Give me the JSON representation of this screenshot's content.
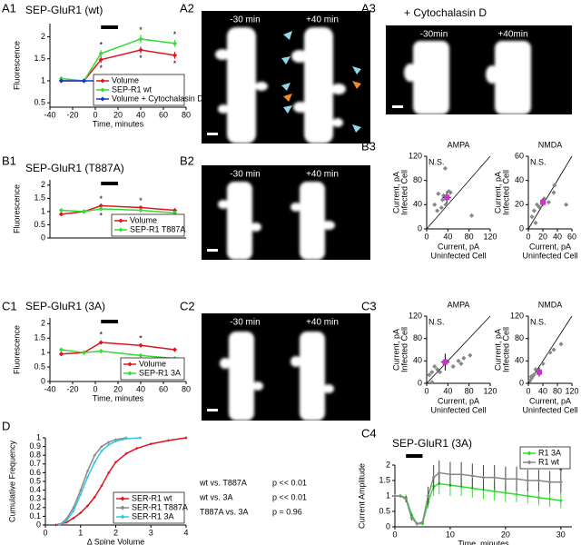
{
  "panels": {
    "labels": [
      "A1",
      "A2",
      "A3",
      "B1",
      "B2",
      "B3",
      "C1",
      "C2",
      "C3",
      "D",
      "C4"
    ],
    "A2": {
      "left": "-30 min",
      "right": "+40 min"
    },
    "A3": {
      "title": "+ Cytochalasin D",
      "left": "-30min",
      "right": "+40min"
    },
    "B2": {
      "left": "-30 min",
      "right": "+40 min"
    },
    "C2": {
      "left": "-30 min",
      "right": "+40 min"
    }
  },
  "chart_data": [
    {
      "type": "line",
      "title": "SEP-GluR1 (wt)",
      "xlabel": "Time, minutes",
      "ylabel": "Fluorescence",
      "x": [
        -30,
        -10,
        5,
        40,
        70
      ],
      "xlim": [
        -40,
        80
      ],
      "xticks": [
        -40,
        -20,
        0,
        20,
        40,
        60,
        80
      ],
      "ylim": [
        0.4,
        2.3
      ],
      "yticks": [
        0.5,
        1,
        1.5,
        2
      ],
      "drug_bar": [
        5,
        20
      ],
      "legend": "lower-right",
      "series": [
        {
          "name": "Volume",
          "color": "#e0141e",
          "values": [
            1.0,
            1.0,
            1.48,
            1.7,
            1.58
          ],
          "errors": [
            0.02,
            0.02,
            0.08,
            0.08,
            0.08
          ]
        },
        {
          "name": "SEP-R1 wt",
          "color": "#33dd33",
          "values": [
            1.05,
            1.0,
            1.62,
            1.95,
            1.85
          ],
          "errors": [
            0.03,
            0.02,
            0.08,
            0.1,
            0.08
          ]
        },
        {
          "name": "Volume + Cytochalasin D",
          "color": "#1530d6",
          "values": [
            1.0,
            1.0,
            1.0,
            1.0,
            1.02
          ],
          "errors": [
            0.02,
            0.02,
            0.02,
            0.02,
            0.02
          ]
        }
      ],
      "annotations": [
        {
          "text": "*",
          "x": 5,
          "y": 1.8,
          "color": "#33dd33"
        },
        {
          "text": "*",
          "x": 5,
          "y": 1.28,
          "color": "#e0141e"
        },
        {
          "text": "*",
          "x": 40,
          "y": 2.14,
          "color": "#33dd33"
        },
        {
          "text": "*",
          "x": 40,
          "y": 1.5,
          "color": "#e0141e"
        },
        {
          "text": "*",
          "x": 70,
          "y": 2.04,
          "color": "#33dd33"
        },
        {
          "text": "*",
          "x": 70,
          "y": 1.38,
          "color": "#e0141e"
        }
      ]
    },
    {
      "type": "line",
      "title": "SEP-GluR1 (T887A)",
      "ylabel": "Fluorescence",
      "x": [
        -30,
        -10,
        5,
        40,
        70
      ],
      "xlim": [
        -40,
        80
      ],
      "ylim": [
        0,
        2.2
      ],
      "yticks": [
        0,
        0.5,
        1,
        1.5,
        2
      ],
      "drug_bar": [
        5,
        20
      ],
      "legend": "lower-right",
      "series": [
        {
          "name": "Volume",
          "color": "#e0141e",
          "values": [
            0.9,
            1.0,
            1.22,
            1.15,
            1.05
          ]
        },
        {
          "name": "SEP-R1 T887A",
          "color": "#33dd33",
          "values": [
            1.05,
            1.0,
            1.1,
            1.05,
            0.95
          ]
        }
      ],
      "annotations": [
        {
          "text": "*",
          "x": 5,
          "y": 1.45,
          "color": "#e0141e"
        },
        {
          "text": "*",
          "x": 5,
          "y": 0.82,
          "color": "#33dd33"
        },
        {
          "text": "*",
          "x": 40,
          "y": 1.38,
          "color": "#e0141e"
        }
      ]
    },
    {
      "type": "line",
      "title": "SEP-GluR1 (3A)",
      "xlabel": "Time, minutes",
      "ylabel": "Fluorescence",
      "x": [
        -30,
        -10,
        5,
        40,
        70
      ],
      "xlim": [
        -40,
        80
      ],
      "xticks": [
        -40,
        -20,
        0,
        20,
        40,
        60,
        80
      ],
      "ylim": [
        0,
        2.2
      ],
      "yticks": [
        0,
        0.5,
        1,
        1.5,
        2
      ],
      "drug_bar": [
        5,
        20
      ],
      "legend": "lower-right",
      "series": [
        {
          "name": "Volume",
          "color": "#e0141e",
          "values": [
            0.95,
            1.0,
            1.35,
            1.25,
            1.1
          ]
        },
        {
          "name": "SEP-R1 3A",
          "color": "#33dd33",
          "values": [
            1.1,
            1.0,
            1.05,
            0.9,
            0.8
          ]
        }
      ],
      "annotations": [
        {
          "text": "*",
          "x": 5,
          "y": 1.6,
          "color": "#e0141e"
        },
        {
          "text": "*",
          "x": 40,
          "y": 1.48,
          "color": "#e0141e"
        }
      ]
    },
    {
      "type": "scatter",
      "title": "AMPA",
      "note": "N.S.",
      "xlabel": [
        "Current, pA",
        "Uninfected Cell"
      ],
      "ylabel": [
        "Current, pA",
        "Infected Cell"
      ],
      "xlim": [
        0,
        120
      ],
      "xticks": [
        0,
        40,
        80,
        120
      ],
      "ylim": [
        0,
        120
      ],
      "yticks": [
        0,
        40,
        80,
        120
      ],
      "color": "#888888",
      "x": [
        15,
        22,
        28,
        32,
        36,
        42,
        45,
        20,
        30,
        85,
        35
      ],
      "values": [
        40,
        58,
        35,
        55,
        40,
        62,
        60,
        30,
        48,
        22,
        100
      ],
      "mean_color": "#cc33cc",
      "mean_x": [
        38
      ],
      "mean_y": [
        52
      ],
      "mean_xerr": [
        8
      ],
      "mean_yerr": [
        10
      ]
    },
    {
      "type": "scatter",
      "title": "NMDA",
      "note": "N.S.",
      "xlabel": [
        "Current, pA",
        "Uninfected Cell"
      ],
      "ylabel": [
        "Current, pA",
        "Infected Cell"
      ],
      "xlim": [
        0,
        60
      ],
      "xticks": [
        0,
        20,
        40,
        60
      ],
      "ylim": [
        0,
        60
      ],
      "yticks": [
        0,
        20,
        40,
        60
      ],
      "color": "#888888",
      "x": [
        5,
        8,
        12,
        15,
        22,
        28,
        35,
        36,
        52,
        10
      ],
      "values": [
        10,
        15,
        20,
        18,
        25,
        22,
        30,
        36,
        20,
        5
      ],
      "mean_color": "#cc33cc",
      "mean_x": [
        20
      ],
      "mean_y": [
        22
      ],
      "mean_xerr": [
        4
      ],
      "mean_yerr": [
        3
      ]
    },
    {
      "type": "scatter",
      "title": "AMPA",
      "note": "N.S.",
      "xlabel": [
        "Current, pA",
        "Uninfected Cell"
      ],
      "ylabel": [
        "Current, pA",
        "Infected Cell"
      ],
      "xlim": [
        0,
        120
      ],
      "xticks": [
        0,
        40,
        80,
        120
      ],
      "ylim": [
        0,
        120
      ],
      "yticks": [
        0,
        40,
        80,
        120
      ],
      "color": "#888888",
      "x": [
        5,
        10,
        15,
        20,
        50,
        60,
        65,
        70,
        82,
        10,
        25
      ],
      "values": [
        15,
        20,
        30,
        25,
        30,
        40,
        35,
        45,
        50,
        2,
        20
      ],
      "mean_color": "#cc33cc",
      "mean_x": [
        35
      ],
      "mean_y": [
        38
      ],
      "mean_xerr": [
        8
      ],
      "mean_yerr": [
        15
      ]
    },
    {
      "type": "scatter",
      "title": "NMDA",
      "note": "N.S.",
      "xlabel": [
        "Current, pA",
        "Uninfected Cell"
      ],
      "ylabel": [
        "Current, pA",
        "Infected Cell"
      ],
      "xlim": [
        0,
        120
      ],
      "xticks": [
        0,
        40,
        80,
        120
      ],
      "ylim": [
        0,
        120
      ],
      "yticks": [
        0,
        40,
        80,
        120
      ],
      "color": "#888888",
      "x": [
        5,
        10,
        15,
        20,
        60,
        70,
        90,
        40,
        8
      ],
      "values": [
        5,
        10,
        15,
        25,
        55,
        60,
        70,
        35,
        12
      ],
      "mean_color": "#cc33cc",
      "mean_x": [
        30
      ],
      "mean_y": [
        20
      ],
      "mean_xerr": [
        8
      ],
      "mean_yerr": [
        8
      ]
    },
    {
      "type": "line",
      "xlabel": "Δ Spine Volume",
      "ylabel": "Cumulative Frequency",
      "xlim": [
        0,
        4
      ],
      "xticks": [
        0,
        1,
        2,
        3,
        4
      ],
      "ylim": [
        0,
        1
      ],
      "yticks": [
        0,
        0.1,
        0.2,
        0.3,
        0.4,
        0.5,
        0.6,
        0.7,
        0.8,
        0.9,
        1
      ],
      "legend": "lower-right",
      "marker_size": 1.6,
      "series": [
        {
          "name": "SER-R1 wt",
          "color": "#e0141e",
          "x": [
            0.3,
            0.6,
            0.8,
            1.0,
            1.2,
            1.4,
            1.6,
            1.8,
            2.0,
            2.3,
            2.6,
            3.0,
            3.5,
            4.0
          ],
          "values": [
            0,
            0.03,
            0.08,
            0.14,
            0.22,
            0.32,
            0.45,
            0.6,
            0.72,
            0.82,
            0.88,
            0.93,
            0.97,
            1
          ]
        },
        {
          "name": "SER-R1 T887A",
          "color": "#888888",
          "x": [
            0.4,
            0.6,
            0.8,
            1.0,
            1.2,
            1.4,
            1.6,
            1.8,
            2.0,
            2.3
          ],
          "values": [
            0,
            0.07,
            0.2,
            0.4,
            0.62,
            0.8,
            0.9,
            0.95,
            0.98,
            1
          ]
        },
        {
          "name": "SER-R1 3A",
          "color": "#33c6e6",
          "x": [
            0.4,
            0.6,
            0.8,
            1.0,
            1.2,
            1.4,
            1.6,
            1.8,
            2.0,
            2.3,
            2.7
          ],
          "values": [
            0,
            0.05,
            0.16,
            0.35,
            0.55,
            0.72,
            0.85,
            0.92,
            0.96,
            0.99,
            1
          ]
        }
      ],
      "stats": [
        [
          "wt vs. T887A",
          "p << 0.01"
        ],
        [
          "wt vs. 3A",
          "p << 0.01"
        ],
        [
          "T887A vs. 3A",
          "p = 0.96"
        ]
      ]
    },
    {
      "type": "line",
      "title": "SEP-GluR1 (3A)",
      "xlabel": "Time, minutes",
      "ylabel": "Current Amplitude",
      "x": [
        0,
        1,
        2,
        3,
        4,
        5,
        6,
        7,
        8,
        10,
        12,
        14,
        16,
        18,
        20,
        22,
        24,
        26,
        28,
        30
      ],
      "xlim": [
        0,
        32
      ],
      "xticks": [
        0,
        10,
        20,
        30
      ],
      "ylim": [
        0,
        2
      ],
      "yticks": [
        0,
        0.5,
        1,
        1.5,
        2
      ],
      "drug_bar": [
        2,
        5
      ],
      "legend": "upper-right",
      "marker_size": 2,
      "series": [
        {
          "name": "R1 3A",
          "color": "#33dd33",
          "values": [
            1,
            1,
            0.95,
            0.4,
            0.1,
            0.1,
            0.8,
            1.3,
            1.4,
            1.35,
            1.3,
            1.25,
            1.2,
            1.15,
            1.1,
            1.05,
            1.0,
            0.95,
            0.9,
            0.85
          ],
          "errors": [
            0.05,
            0.05,
            0.1,
            0.1,
            0.05,
            0.05,
            0.2,
            0.3,
            0.35,
            0.35,
            0.3,
            0.3,
            0.3,
            0.3,
            0.3,
            0.25,
            0.25,
            0.25,
            0.25,
            0.25
          ]
        },
        {
          "name": "R1 wt",
          "color": "#888888",
          "values": [
            1,
            1,
            0.9,
            0.3,
            0.1,
            0.15,
            1.0,
            1.6,
            1.75,
            1.7,
            1.7,
            1.65,
            1.6,
            1.6,
            1.55,
            1.55,
            1.5,
            1.5,
            1.45,
            1.45
          ],
          "errors": [
            0.05,
            0.05,
            0.1,
            0.1,
            0.05,
            0.05,
            0.3,
            0.4,
            0.4,
            0.4,
            0.4,
            0.4,
            0.4,
            0.4,
            0.4,
            0.4,
            0.35,
            0.35,
            0.35,
            0.35
          ]
        }
      ],
      "annotations": [
        {
          "text": "*",
          "x": 30,
          "y": 1.78,
          "color": "#000000"
        }
      ]
    }
  ]
}
